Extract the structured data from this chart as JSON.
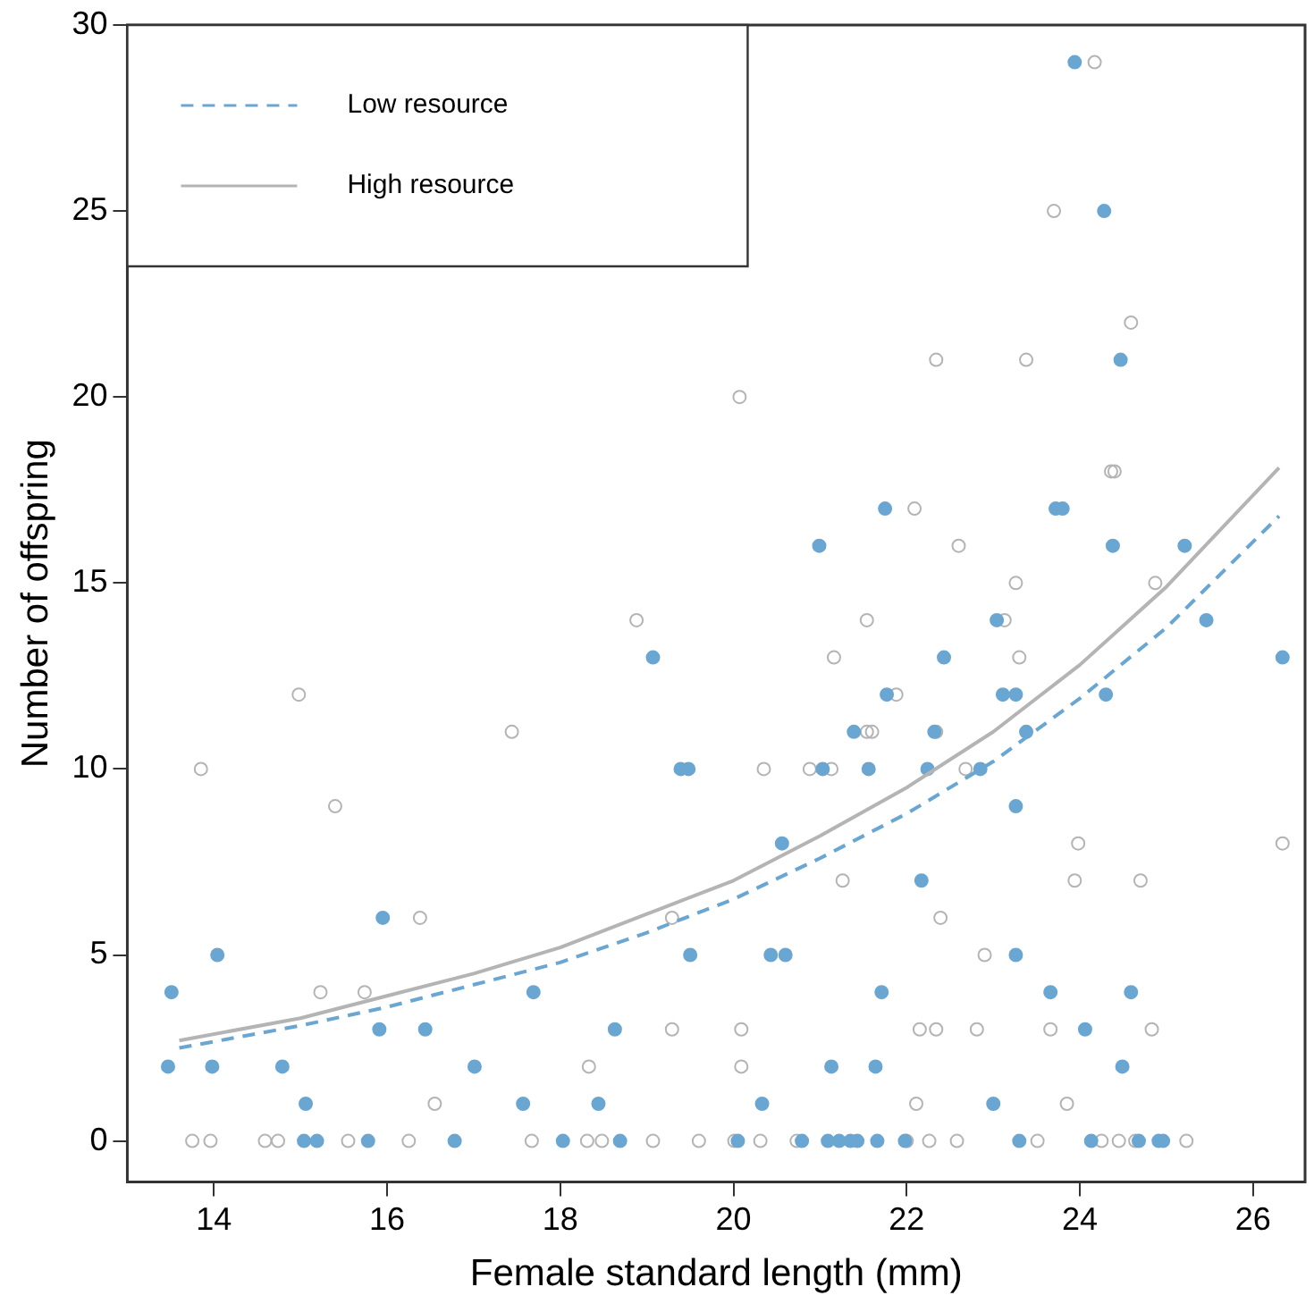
{
  "chart_data": {
    "type": "scatter",
    "xlabel": "Female standard length (mm)",
    "ylabel": "Number of offspring",
    "xlim": [
      13.0,
      26.6
    ],
    "ylim": [
      -1.1,
      30
    ],
    "xticks": [
      14,
      16,
      18,
      20,
      22,
      24,
      26
    ],
    "yticks": [
      0,
      5,
      10,
      15,
      20,
      25,
      30
    ],
    "grid": false,
    "legend": "top left",
    "series": [
      {
        "marker": "circle",
        "color": "#6aa6d2",
        "x": [
          13.51,
          13.47,
          14.04,
          13.98,
          14.79,
          15.06,
          15.04,
          15.19,
          15.78,
          15.95,
          15.91,
          16.44,
          16.78,
          17.01,
          17.57,
          17.69,
          18.03,
          18.44,
          18.63,
          19.07,
          19.39,
          19.48,
          19.5,
          18.69,
          20.05,
          20.33,
          20.43,
          20.6,
          20.56,
          20.79,
          21.03,
          21.39,
          21.56,
          21.13,
          21.09,
          21.22,
          21.35,
          21.43,
          21.64,
          21.66,
          21.98,
          21.71,
          22.17,
          22.24,
          22.32,
          21.77,
          22.43,
          23.04,
          23.11,
          23.26,
          23.38,
          22.85,
          23.26,
          23.26,
          23.66,
          24.59,
          24.06,
          24.49,
          23.0,
          23.3,
          24.13,
          24.68,
          24.91,
          24.96,
          24.3,
          25.46,
          26.34,
          21.75,
          20.99,
          23.94,
          24.28,
          24.47,
          23.72,
          23.8,
          24.38,
          25.21
        ],
        "values": [
          4,
          2,
          5,
          2,
          2,
          1,
          0,
          0,
          0,
          6,
          3,
          3,
          0,
          2,
          1,
          4,
          0,
          1,
          3,
          13,
          10,
          10,
          5,
          0,
          0,
          1,
          5,
          5,
          8,
          0,
          10,
          11,
          10,
          2,
          0,
          0,
          0,
          0,
          2,
          0,
          0,
          4,
          7,
          10,
          11,
          12,
          13,
          14,
          12,
          12,
          11,
          10,
          9,
          5,
          4,
          4,
          3,
          2,
          1,
          0,
          0,
          0,
          0,
          0,
          12,
          14,
          13,
          17,
          16,
          29,
          25,
          21,
          17,
          17,
          16,
          16
        ]
      },
      {
        "marker": "circle",
        "color": "#b4b4b4",
        "x": [
          13.75,
          13.96,
          14.59,
          14.74,
          15.55,
          16.25,
          17.67,
          14.98,
          13.85,
          15.4,
          16.38,
          15.23,
          15.74,
          16.55,
          17.44,
          18.88,
          21.16,
          21.54,
          21.54,
          21.6,
          20.35,
          20.88,
          21.13,
          21.26,
          19.29,
          19.29,
          20.09,
          18.33,
          20.09,
          18.31,
          18.48,
          19.07,
          19.6,
          20.01,
          20.31,
          20.73,
          23.13,
          23.26,
          24.87,
          23.3,
          21.88,
          22.34,
          22.68,
          23.98,
          26.34,
          23.94,
          24.7,
          22.39,
          22.9,
          22.15,
          22.34,
          22.81,
          23.66,
          24.83,
          22.11,
          23.85,
          22.0,
          22.26,
          22.58,
          23.51,
          24.25,
          24.45,
          24.64,
          25.23,
          20.07,
          24.17,
          23.7,
          24.59,
          22.34,
          23.38,
          24.36,
          24.4,
          22.09,
          22.6
        ],
        "values": [
          0,
          0,
          0,
          0,
          0,
          0,
          0,
          12,
          10,
          9,
          6,
          4,
          4,
          1,
          11,
          14,
          13,
          14,
          11,
          11,
          10,
          10,
          10,
          7,
          6,
          3,
          3,
          2,
          2,
          0,
          0,
          0,
          0,
          0,
          0,
          0,
          14,
          15,
          15,
          13,
          12,
          11,
          10,
          8,
          8,
          7,
          7,
          6,
          5,
          3,
          3,
          3,
          3,
          3,
          1,
          1,
          0,
          0,
          0,
          0,
          0,
          0,
          0,
          0,
          20,
          29,
          25,
          22,
          21,
          21,
          18,
          18,
          17,
          16
        ]
      },
      {
        "type": "line",
        "name": "Low resource",
        "color": "#6aa6d2",
        "line_style": "dashed",
        "marker": "none",
        "x": [
          13.6,
          15,
          16,
          17,
          18,
          19,
          20,
          21,
          22,
          23,
          24,
          25,
          26.3
        ],
        "values": [
          2.5,
          3.1,
          3.6,
          4.2,
          4.8,
          5.6,
          6.5,
          7.6,
          8.8,
          10.2,
          11.9,
          13.8,
          16.8
        ]
      },
      {
        "type": "line",
        "name": "High resource",
        "color": "#b4b4b4",
        "line_style": "solid",
        "marker": "none",
        "x": [
          13.6,
          15,
          16,
          17,
          18,
          19,
          20,
          21,
          22,
          23,
          24,
          25,
          26.3
        ],
        "values": [
          2.7,
          3.3,
          3.9,
          4.5,
          5.2,
          6.1,
          7.0,
          8.2,
          9.5,
          11.0,
          12.8,
          14.9,
          18.1
        ]
      }
    ]
  }
}
